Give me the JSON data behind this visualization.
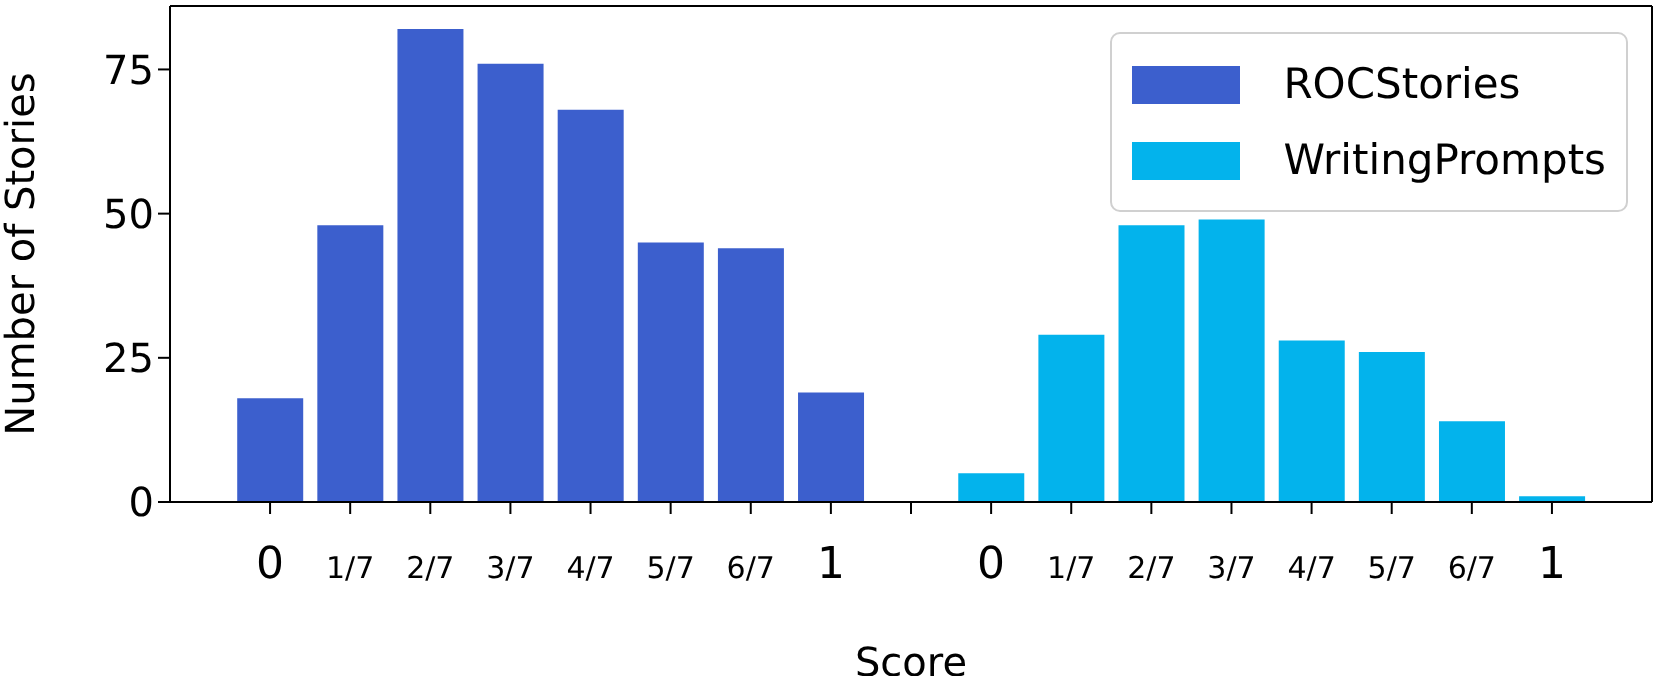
{
  "chart_data": {
    "type": "bar",
    "xlabel": "Score",
    "ylabel": "Number of Stories",
    "categories": [
      "0",
      "1/7",
      "2/7",
      "3/7",
      "4/7",
      "5/7",
      "6/7",
      "1",
      null,
      "0",
      "1/7",
      "2/7",
      "3/7",
      "4/7",
      "5/7",
      "6/7",
      "1"
    ],
    "series": [
      {
        "name": "ROCStories",
        "color": "#3c5fcd",
        "values": [
          18,
          48,
          82,
          76,
          68,
          45,
          44,
          19,
          null,
          null,
          null,
          null,
          null,
          null,
          null,
          null,
          null
        ]
      },
      {
        "name": "WritingPrompts",
        "color": "#03b3ec",
        "values": [
          null,
          null,
          null,
          null,
          null,
          null,
          null,
          null,
          null,
          5,
          29,
          48,
          49,
          28,
          26,
          14,
          1
        ]
      }
    ],
    "ylim": [
      0,
      86
    ],
    "yticks": [
      0,
      25,
      50,
      75
    ],
    "grid": false,
    "legend": "top right"
  }
}
